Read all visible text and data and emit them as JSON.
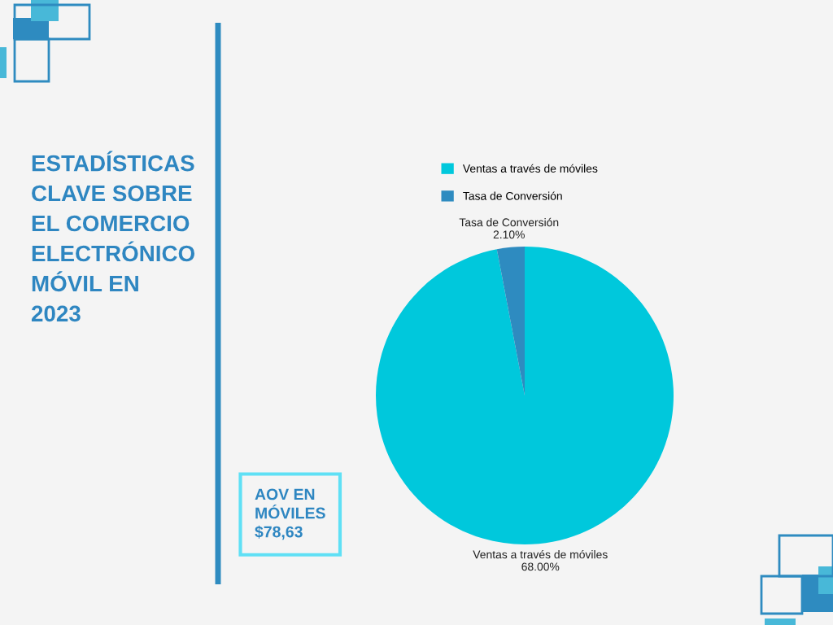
{
  "chart_data": {
    "type": "pie",
    "title": "ESTADÍSTICAS\nCLAVE SOBRE\nEL COMERCIO\nELECTRÓNICO\nMÓVIL EN\n2023",
    "categories": [
      "Ventas a través de móviles",
      "Tasa de Conversión"
    ],
    "values": [
      68.0,
      2.1
    ],
    "value_labels": [
      "68.00%",
      "2.10%"
    ],
    "colors": [
      "#00c8dc",
      "#2e8bc0"
    ],
    "legend": "top",
    "annotations": [
      "AOV EN\nMÓVILES\n$78,63"
    ]
  }
}
